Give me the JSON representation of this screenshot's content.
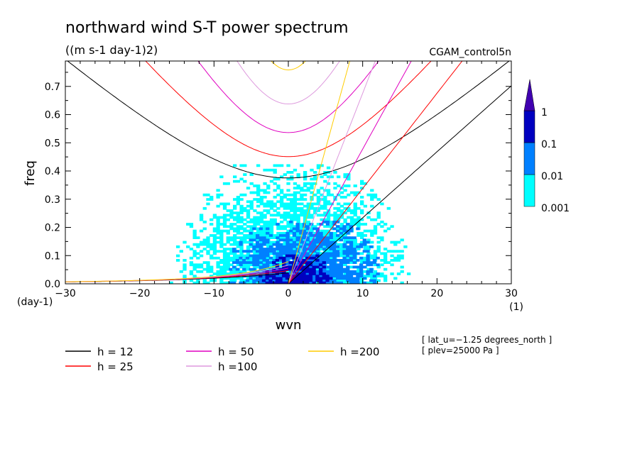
{
  "header": {
    "title": "northward wind S-T power spectrum",
    "units": "((m s-1 day-1)2)",
    "dataset": "CGAM_control5n"
  },
  "chart_data": {
    "type": "heatmap",
    "title": "northward wind S-T power spectrum",
    "subtitle": "((m s-1 day-1)2)",
    "xlabel": "wvn",
    "ylabel": "freq",
    "x_unit": "(1)",
    "y_unit": "(day-1)",
    "xlim": [
      -30,
      30
    ],
    "ylim": [
      0.0,
      0.79
    ],
    "x_ticks": [
      "−30",
      "−20",
      "−10",
      "0",
      "10",
      "20",
      "30"
    ],
    "x_tick_values": [
      -30,
      -20,
      -10,
      0,
      10,
      20,
      30
    ],
    "y_ticks": [
      "0.0",
      "0.1",
      "0.2",
      "0.3",
      "0.4",
      "0.5",
      "0.6",
      "0.7"
    ],
    "y_tick_values": [
      0.0,
      0.1,
      0.2,
      0.3,
      0.4,
      0.5,
      0.6,
      0.7
    ],
    "colorbar": {
      "levels": [
        "0.001",
        "0.01",
        "0.1",
        "1"
      ],
      "level_values": [
        0.001,
        0.01,
        0.1,
        1
      ],
      "colors": [
        "#00ffff",
        "#0080ff",
        "#0000c0",
        "#4000b0"
      ]
    },
    "shaded_regions": [
      {
        "level": 0.001,
        "x": [
          -16,
          16
        ],
        "freq": [
          0.0,
          0.42
        ]
      },
      {
        "level": 0.01,
        "x": [
          -8,
          12
        ],
        "freq": [
          0.0,
          0.22
        ]
      },
      {
        "level": 0.1,
        "x": [
          -4,
          6
        ],
        "freq": [
          0.0,
          0.1
        ]
      }
    ],
    "dispersion_curves": [
      {
        "name": "h = 12",
        "h": 12,
        "color": "#000000"
      },
      {
        "name": "h = 25",
        "h": 25,
        "color": "#ff0000"
      },
      {
        "name": "h = 50",
        "h": 50,
        "color": "#e000c0"
      },
      {
        "name": "h =100",
        "h": 100,
        "color": "#dd99dd"
      },
      {
        "name": "h =200",
        "h": 200,
        "color": "#ffcc00"
      }
    ],
    "annotations": [
      "[ lat_u=−1.25 degrees_north ]",
      "[ plev=25000 Pa ]"
    ]
  }
}
